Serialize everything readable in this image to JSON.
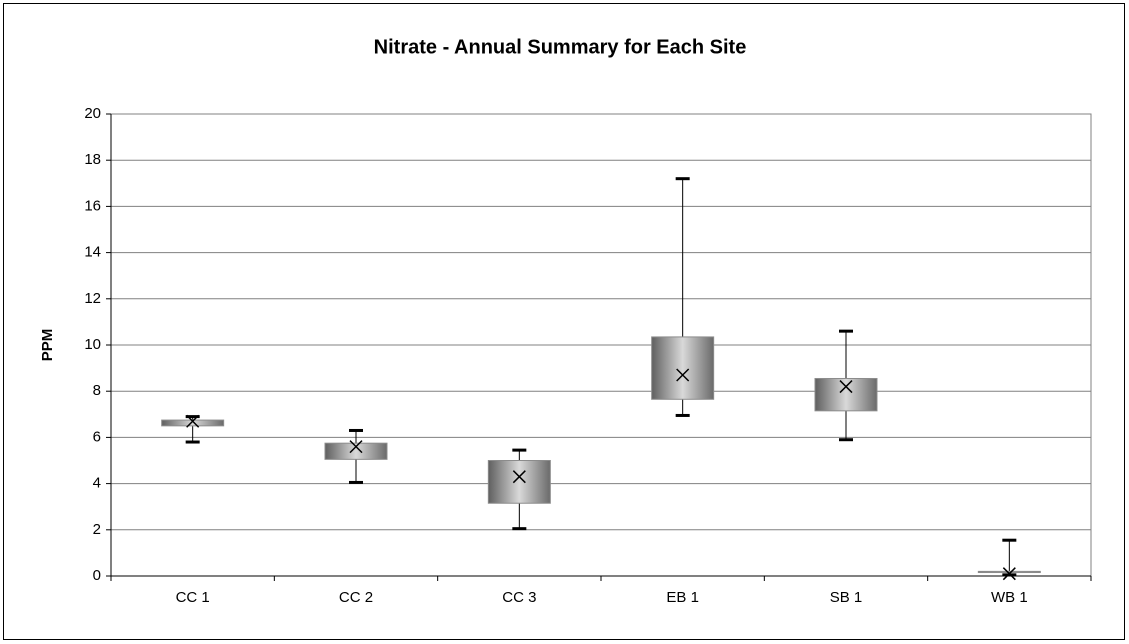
{
  "chart_data": {
    "type": "box",
    "title": "Nitrate - Annual Summary for Each Site",
    "y_label": "PPM",
    "categories": [
      "CC 1",
      "CC 2",
      "CC 3",
      "EB 1",
      "SB 1",
      "WB 1"
    ],
    "min": [
      5.8,
      4.05,
      2.05,
      6.95,
      5.9,
      0.05
    ],
    "q1": [
      6.5,
      5.05,
      3.15,
      7.65,
      7.15,
      0.15
    ],
    "q3": [
      6.75,
      5.75,
      5.0,
      10.35,
      8.55,
      0.2
    ],
    "max": [
      6.9,
      6.3,
      5.45,
      17.2,
      10.6,
      1.55
    ],
    "mean": [
      6.7,
      5.6,
      4.3,
      8.7,
      8.2,
      0.1
    ],
    "color": "#8c8c8c",
    "ylim": [
      0,
      20
    ],
    "yticks": [
      0,
      2,
      4,
      6,
      8,
      10,
      12,
      14,
      16,
      18,
      20
    ],
    "grid": true
  }
}
